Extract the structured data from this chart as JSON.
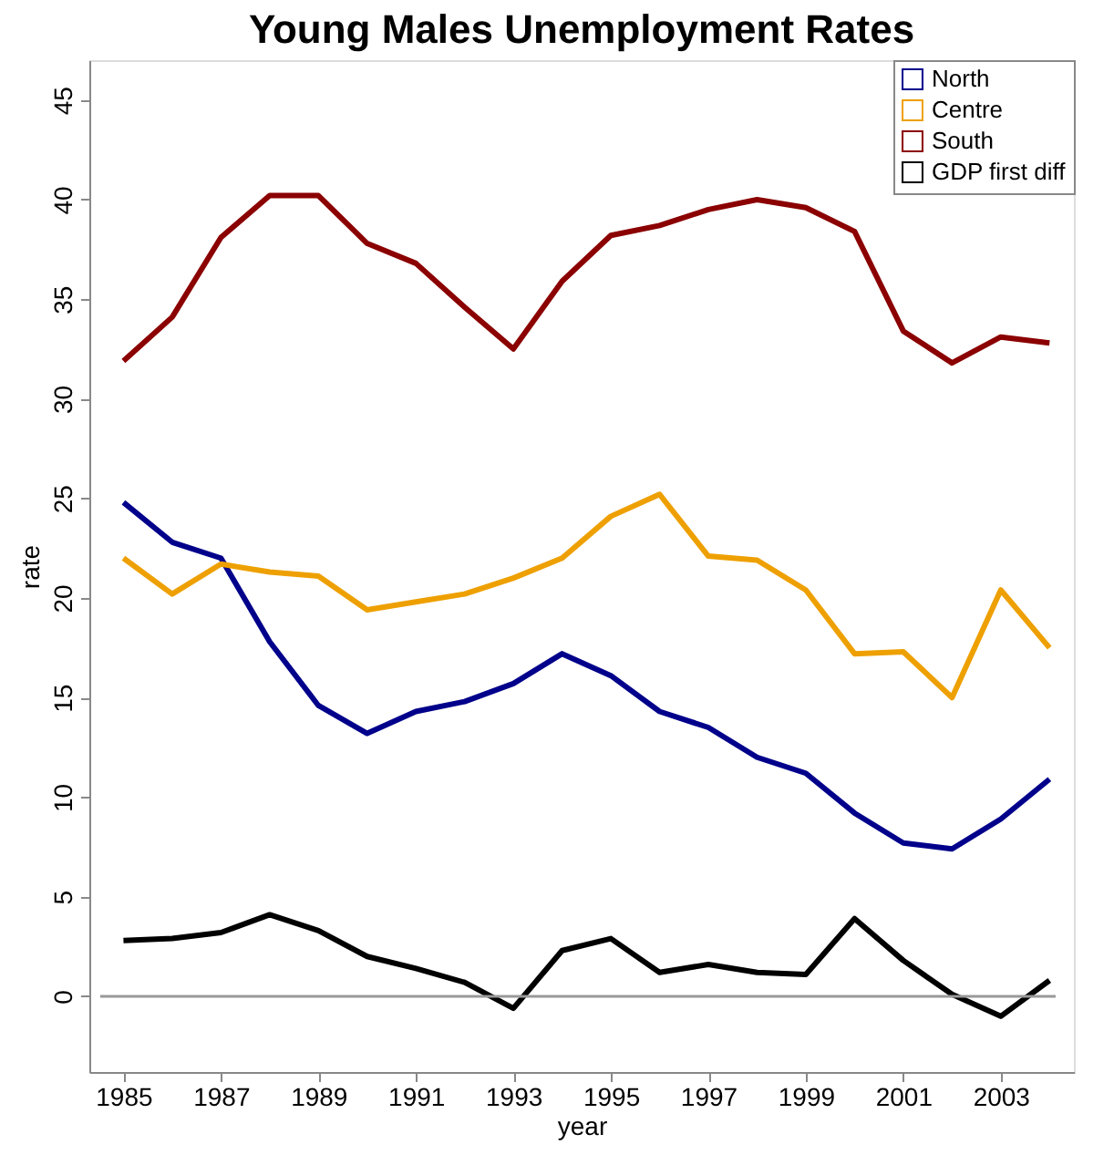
{
  "chart_data": {
    "type": "line",
    "title": "Young Males Unemployment Rates",
    "xlabel": "year",
    "ylabel": "rate",
    "x": [
      1985,
      1986,
      1987,
      1988,
      1989,
      1990,
      1991,
      1992,
      1993,
      1994,
      1995,
      1996,
      1997,
      1998,
      1999,
      2000,
      2001,
      2002,
      2003,
      2004
    ],
    "series": [
      {
        "name": "North",
        "color": "#00008b",
        "values": [
          24.8,
          22.8,
          22.0,
          17.8,
          14.6,
          13.2,
          14.3,
          14.8,
          15.7,
          17.2,
          16.1,
          14.3,
          13.5,
          12.0,
          11.2,
          9.2,
          7.7,
          7.4,
          8.9,
          10.9
        ]
      },
      {
        "name": "Centre",
        "color": "#eea000",
        "values": [
          22.0,
          20.2,
          21.7,
          21.3,
          21.1,
          19.4,
          19.8,
          20.2,
          21.0,
          22.0,
          24.1,
          25.2,
          22.1,
          21.9,
          20.4,
          17.2,
          17.3,
          15.0,
          20.4,
          17.5
        ]
      },
      {
        "name": "South",
        "color": "#8b0000",
        "values": [
          31.9,
          34.1,
          38.1,
          40.2,
          40.2,
          37.8,
          36.8,
          34.6,
          32.5,
          35.9,
          38.2,
          38.7,
          39.5,
          40.0,
          39.6,
          38.4,
          33.4,
          31.8,
          33.1,
          32.8
        ]
      },
      {
        "name": "GDP first diff",
        "color": "#000000",
        "values": [
          2.8,
          2.9,
          3.2,
          4.1,
          3.3,
          2.0,
          1.4,
          0.7,
          -0.6,
          2.3,
          2.9,
          1.2,
          1.6,
          1.2,
          1.1,
          3.9,
          1.8,
          0.1,
          -1.0,
          0.8
        ]
      }
    ],
    "xlim": [
      1984.3,
      2004.5
    ],
    "xticks": [
      1985,
      1987,
      1989,
      1991,
      1993,
      1995,
      1997,
      1999,
      2001,
      2003
    ],
    "ylim": [
      -3.8,
      47
    ],
    "yticks": [
      0,
      5,
      10,
      15,
      20,
      25,
      30,
      35,
      40,
      45
    ],
    "ref_lines": [
      {
        "axis": "y",
        "value": 0,
        "color": "#999999"
      }
    ],
    "grid": false,
    "legend": "top right",
    "marker": "none",
    "line_style": "solid"
  }
}
